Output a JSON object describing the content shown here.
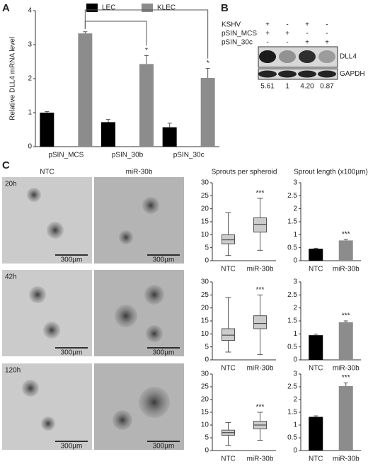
{
  "panel_labels": [
    "A",
    "B",
    "C"
  ],
  "chart_data": [
    {
      "type": "bar",
      "ylabel": "Relative DLL4 mRNA level",
      "categories": [
        "pSIN_MCS",
        "pSIN_30b",
        "pSIN_30c"
      ],
      "series": [
        {
          "name": "LEC",
          "color": "#000000",
          "values": [
            1.0,
            0.72,
            0.57
          ],
          "errors": [
            0.03,
            0.08,
            0.12
          ]
        },
        {
          "name": "KLEC",
          "color": "#8c8c8c",
          "values": [
            3.33,
            2.43,
            2.02
          ],
          "errors": [
            0.05,
            0.25,
            0.28
          ]
        }
      ],
      "annotations": [
        "*",
        "*"
      ],
      "ylim": [
        0,
        4
      ],
      "yticks": [
        0,
        1,
        2,
        3,
        4
      ]
    },
    {
      "type": "box",
      "title": "Sprouts per spheroid",
      "categories": [
        "NTC",
        "miR-30b"
      ],
      "boxes": [
        {
          "whisker_low": 2,
          "q1": 6.5,
          "median": 8,
          "q3": 10,
          "whisker_high": 18.5
        },
        {
          "whisker_low": 4,
          "q1": 11,
          "median": 14,
          "q3": 16.5,
          "whisker_high": 24
        }
      ],
      "color": "#cccccc",
      "annotation": "***",
      "ylim": [
        0,
        30
      ],
      "yticks": [
        0,
        5,
        10,
        15,
        20,
        25,
        30
      ]
    },
    {
      "type": "box",
      "categories": [
        "NTC",
        "miR-30b"
      ],
      "boxes": [
        {
          "whisker_low": 3,
          "q1": 7.5,
          "median": 9.5,
          "q3": 12,
          "whisker_high": 24
        },
        {
          "whisker_low": 2,
          "q1": 12,
          "median": 14,
          "q3": 17,
          "whisker_high": 25
        }
      ],
      "color": "#cccccc",
      "annotation": "***",
      "ylim": [
        0,
        30
      ],
      "yticks": [
        0,
        5,
        10,
        15,
        20,
        25,
        30
      ]
    },
    {
      "type": "box",
      "categories": [
        "NTC",
        "miR-30b"
      ],
      "boxes": [
        {
          "whisker_low": 2,
          "q1": 6,
          "median": 7,
          "q3": 8,
          "whisker_high": 11
        },
        {
          "whisker_low": 4,
          "q1": 8.5,
          "median": 10,
          "q3": 11.5,
          "whisker_high": 15
        }
      ],
      "color": "#cccccc",
      "annotation": "***",
      "ylim": [
        0,
        30
      ],
      "yticks": [
        0,
        5,
        10,
        15,
        20,
        25,
        30
      ]
    },
    {
      "type": "bar",
      "title": "Sprout length (x100µm)",
      "categories": [
        "NTC",
        "miR-30b"
      ],
      "values": [
        0.46,
        0.78
      ],
      "errors": [
        0.02,
        0.04
      ],
      "colors": [
        "#000000",
        "#8c8c8c"
      ],
      "annotation": "***",
      "ylim": [
        0,
        3
      ],
      "yticks": [
        0,
        0.5,
        1,
        1.5,
        2,
        2.5,
        3
      ]
    },
    {
      "type": "bar",
      "categories": [
        "NTC",
        "miR-30b"
      ],
      "values": [
        0.95,
        1.45
      ],
      "errors": [
        0.04,
        0.05
      ],
      "colors": [
        "#000000",
        "#8c8c8c"
      ],
      "annotation": "***",
      "ylim": [
        0,
        3
      ],
      "yticks": [
        0,
        0.5,
        1,
        1.5,
        2,
        2.5,
        3
      ]
    },
    {
      "type": "bar",
      "categories": [
        "NTC",
        "miR-30b"
      ],
      "values": [
        1.32,
        2.53
      ],
      "errors": [
        0.04,
        0.12
      ],
      "colors": [
        "#000000",
        "#8c8c8c"
      ],
      "annotation": "***",
      "ylim": [
        0,
        3
      ],
      "yticks": [
        0,
        0.5,
        1,
        1.5,
        2,
        2.5,
        3
      ]
    }
  ],
  "western_blot": {
    "conditions": [
      {
        "label": "KSHV",
        "signs": [
          "+",
          "-",
          "+",
          "-"
        ]
      },
      {
        "label": "pSIN_MCS",
        "signs": [
          "+",
          "+",
          "-",
          "-"
        ]
      },
      {
        "label": "pSIN_30c",
        "signs": [
          "-",
          "-",
          "+",
          "+"
        ]
      }
    ],
    "bands": [
      "DLL4",
      "GAPDH"
    ],
    "quantification": [
      "5.61",
      "1",
      "4.20",
      "0.87"
    ]
  },
  "microscopy": {
    "columns": [
      "NTC",
      "miR-30b"
    ],
    "times": [
      "20h",
      "42h",
      "120h"
    ],
    "scale_bar": "300µm"
  }
}
